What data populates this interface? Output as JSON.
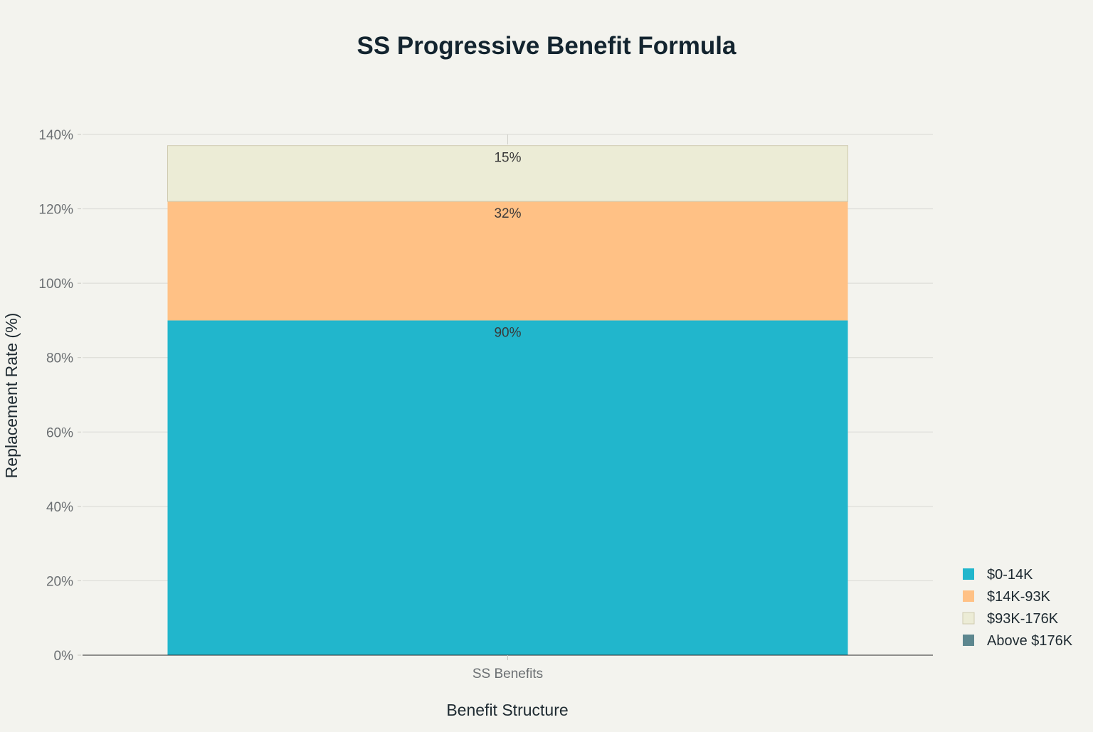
{
  "chart_data": {
    "type": "bar",
    "stacked": true,
    "title": "SS Progressive Benefit Formula",
    "xlabel": "Benefit Structure",
    "ylabel": "Replacement Rate (%)",
    "categories": [
      "SS Benefits"
    ],
    "ylim": [
      0,
      140
    ],
    "yticks": [
      0,
      20,
      40,
      60,
      80,
      100,
      120,
      140
    ],
    "ytick_labels": [
      "0%",
      "20%",
      "40%",
      "60%",
      "80%",
      "100%",
      "120%",
      "140%"
    ],
    "grid": true,
    "legend_position": "bottom-right",
    "series": [
      {
        "name": "$0-14K",
        "values": [
          90
        ],
        "label": "90%",
        "color": "#21b6cc"
      },
      {
        "name": "$14K-93K",
        "values": [
          32
        ],
        "label": "32%",
        "color": "#ffc185"
      },
      {
        "name": "$93K-176K",
        "values": [
          15
        ],
        "label": "15%",
        "color": "#ececd6"
      },
      {
        "name": "Above $176K",
        "values": [
          0
        ],
        "label": "",
        "color": "#5d878f"
      }
    ]
  }
}
